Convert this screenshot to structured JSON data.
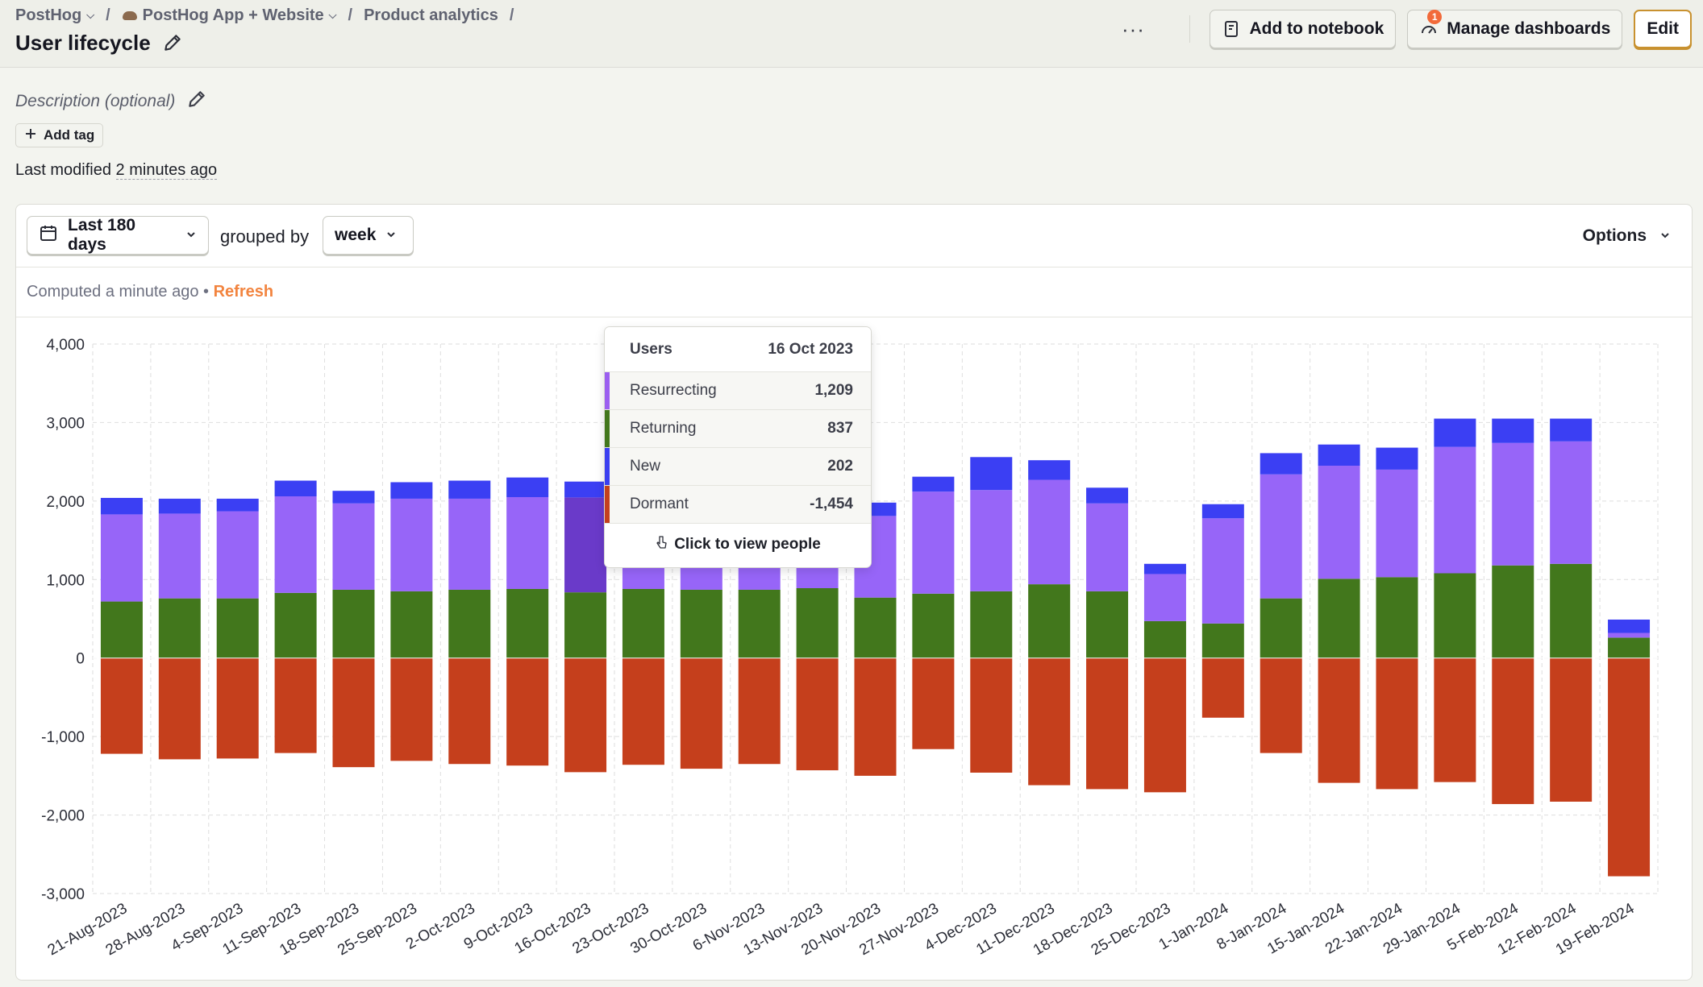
{
  "breadcrumbs": [
    {
      "label": "PostHog",
      "has_chevron": true
    },
    {
      "label": "PostHog App + Website",
      "has_chevron": true,
      "icon": "hedgehog-icon"
    },
    {
      "label": "Product analytics",
      "has_chevron": false
    }
  ],
  "title": "User lifecycle",
  "actions": {
    "more": "···",
    "add_to_notebook": "Add to notebook",
    "manage_dashboards": "Manage dashboards",
    "manage_badge": "1",
    "edit": "Edit"
  },
  "description_placeholder": "Description (optional)",
  "add_tag": "Add tag",
  "last_modified_prefix": "Last modified",
  "last_modified_value": "2 minutes ago",
  "controls": {
    "date_range": "Last 180 days",
    "grouped_by_label": "grouped by",
    "interval": "week",
    "options": "Options"
  },
  "computed_text": "Computed a minute ago",
  "refresh_sep": " • ",
  "refresh": "Refresh",
  "tooltip": {
    "header_label": "Users",
    "header_date": "16 Oct 2023",
    "rows": [
      {
        "label": "Resurrecting",
        "value": "1,209",
        "color": "#9b5ff0"
      },
      {
        "label": "Returning",
        "value": "837",
        "color": "#42771c"
      },
      {
        "label": "New",
        "value": "202",
        "color": "#3a3ef0"
      },
      {
        "label": "Dormant",
        "value": "-1,454",
        "color": "#c4401d"
      }
    ],
    "footer": "Click to view people"
  },
  "colors": {
    "new": "#3b3ff3",
    "resurrecting": "#9765f8",
    "returning": "#42771c",
    "dormant": "#c53f1c",
    "highlight_resurrecting": "#6a3ac9"
  },
  "chart_data": {
    "type": "bar",
    "stacked": true,
    "categories": [
      "21-Aug-2023",
      "28-Aug-2023",
      "4-Sep-2023",
      "11-Sep-2023",
      "18-Sep-2023",
      "25-Sep-2023",
      "2-Oct-2023",
      "9-Oct-2023",
      "16-Oct-2023",
      "23-Oct-2023",
      "30-Oct-2023",
      "6-Nov-2023",
      "13-Nov-2023",
      "20-Nov-2023",
      "27-Nov-2023",
      "4-Dec-2023",
      "11-Dec-2023",
      "18-Dec-2023",
      "25-Dec-2023",
      "1-Jan-2024",
      "8-Jan-2024",
      "15-Jan-2024",
      "22-Jan-2024",
      "29-Jan-2024",
      "5-Feb-2024",
      "12-Feb-2024",
      "19-Feb-2024"
    ],
    "series": [
      {
        "name": "Returning",
        "values": [
          720,
          760,
          760,
          830,
          870,
          850,
          870,
          880,
          837,
          880,
          870,
          870,
          890,
          770,
          820,
          850,
          940,
          850,
          470,
          440,
          760,
          1010,
          1030,
          1080,
          1180,
          1200,
          260
        ]
      },
      {
        "name": "Resurrecting",
        "values": [
          1110,
          1080,
          1110,
          1230,
          1100,
          1180,
          1160,
          1170,
          1209,
          1130,
          1120,
          1110,
          1080,
          1040,
          1300,
          1290,
          1330,
          1120,
          600,
          1340,
          1580,
          1440,
          1370,
          1610,
          1560,
          1560,
          60
        ]
      },
      {
        "name": "New",
        "values": [
          210,
          190,
          160,
          200,
          160,
          210,
          230,
          250,
          202,
          230,
          230,
          240,
          230,
          170,
          190,
          420,
          250,
          200,
          130,
          180,
          270,
          270,
          280,
          360,
          310,
          290,
          170
        ]
      },
      {
        "name": "Dormant",
        "values": [
          -1220,
          -1290,
          -1280,
          -1210,
          -1390,
          -1310,
          -1350,
          -1370,
          -1454,
          -1360,
          -1410,
          -1350,
          -1430,
          -1500,
          -1160,
          -1460,
          -1620,
          -1670,
          -1710,
          -760,
          -1210,
          -1590,
          -1670,
          -1580,
          -1860,
          -1830,
          -2780
        ]
      }
    ],
    "ylim": [
      -3000,
      4000
    ],
    "yticks": [
      4000,
      3000,
      2000,
      1000,
      0,
      -1000,
      -2000,
      -3000
    ],
    "ytick_labels": [
      "4,000",
      "3,000",
      "2,000",
      "1,000",
      "0",
      "-1,000",
      "-2,000",
      "-3,000"
    ],
    "highlighted_index": 8,
    "grid": true
  }
}
